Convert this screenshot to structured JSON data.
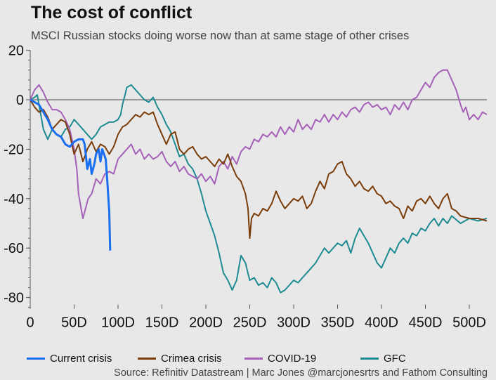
{
  "header": {
    "title": "The cost of conflict",
    "subtitle": "MSCI Russian stocks doing worse now than at same stage of other crises"
  },
  "source": "Source: Refinitiv Datastream | Marc Jones @marcjonesrtrs and Fathom Consulting",
  "chart_data": {
    "type": "line",
    "title": "The cost of conflict",
    "xlabel": "",
    "ylabel": "",
    "xlim": [
      0,
      520
    ],
    "ylim": [
      -84,
      20
    ],
    "x_ticks": [
      0,
      50,
      100,
      150,
      200,
      250,
      300,
      350,
      400,
      450,
      500
    ],
    "x_tick_labels": [
      "0",
      "50D",
      "100D",
      "150D",
      "200D",
      "250D",
      "300D",
      "350D",
      "400D",
      "450D",
      "500D"
    ],
    "y_ticks": [
      20,
      0,
      -20,
      -40,
      -60,
      -80
    ],
    "y_tick_labels": [
      "20",
      "0",
      "-20",
      "-40",
      "-60",
      "-80"
    ],
    "grid": false,
    "legend_position": "bottom",
    "series": [
      {
        "name": "Current crisis",
        "color": "#1a6ef0",
        "width": 3,
        "x": [
          0,
          5,
          10,
          15,
          20,
          25,
          30,
          35,
          40,
          45,
          50,
          55,
          60,
          62,
          65,
          68,
          70,
          73,
          75,
          78,
          80,
          82,
          84,
          86,
          88,
          89,
          90,
          91
        ],
        "y": [
          0,
          -1,
          -2,
          -5,
          -8,
          -12,
          -14,
          -15,
          -18,
          -19,
          -17,
          -16,
          -16,
          -18,
          -28,
          -24,
          -30,
          -26,
          -22,
          -20,
          -25,
          -20,
          -22,
          -24,
          -34,
          -40,
          -45,
          -61
        ]
      },
      {
        "name": "Crimea crisis",
        "color": "#7a3d0a",
        "width": 2,
        "x": [
          0,
          5,
          10,
          15,
          20,
          25,
          30,
          35,
          40,
          45,
          50,
          55,
          60,
          65,
          70,
          75,
          80,
          85,
          90,
          95,
          100,
          105,
          110,
          115,
          120,
          125,
          130,
          135,
          140,
          145,
          150,
          155,
          160,
          165,
          170,
          175,
          180,
          185,
          190,
          195,
          200,
          205,
          210,
          215,
          220,
          225,
          230,
          235,
          240,
          245,
          248,
          250,
          252,
          255,
          260,
          265,
          270,
          275,
          280,
          285,
          290,
          295,
          300,
          305,
          310,
          315,
          320,
          325,
          330,
          335,
          340,
          345,
          350,
          355,
          360,
          365,
          370,
          375,
          380,
          385,
          390,
          395,
          400,
          405,
          410,
          415,
          420,
          425,
          430,
          435,
          440,
          445,
          450,
          455,
          460,
          465,
          470,
          475,
          480,
          485,
          490,
          500,
          510,
          520
        ],
        "y": [
          0,
          -3,
          -5,
          -4,
          -7,
          -12,
          -10,
          -8,
          -9,
          -14,
          -22,
          -18,
          -25,
          -20,
          -17,
          -21,
          -18,
          -19,
          -22,
          -19,
          -14,
          -11,
          -10,
          -8,
          -6,
          -7,
          -5,
          -6,
          -5,
          -10,
          -14,
          -18,
          -14,
          -13,
          -20,
          -22,
          -20,
          -19,
          -22,
          -24,
          -23,
          -25,
          -27,
          -24,
          -26,
          -22,
          -27,
          -31,
          -33,
          -38,
          -44,
          -56,
          -48,
          -46,
          -47,
          -44,
          -45,
          -42,
          -37,
          -41,
          -44,
          -42,
          -40,
          -41,
          -39,
          -44,
          -42,
          -37,
          -33,
          -36,
          -30,
          -29,
          -26,
          -25,
          -30,
          -32,
          -35,
          -33,
          -36,
          -37,
          -35,
          -38,
          -39,
          -42,
          -41,
          -43,
          -44,
          -48,
          -43,
          -45,
          -41,
          -40,
          -42,
          -39,
          -42,
          -44,
          -40,
          -38,
          -44,
          -45,
          -47,
          -48,
          -48,
          -49
        ]
      },
      {
        "name": "COVID-19",
        "color": "#a560b8",
        "width": 2,
        "x": [
          0,
          5,
          10,
          15,
          20,
          25,
          30,
          35,
          40,
          45,
          50,
          53,
          55,
          58,
          60,
          63,
          66,
          70,
          75,
          80,
          85,
          90,
          95,
          100,
          105,
          110,
          115,
          120,
          125,
          130,
          135,
          140,
          145,
          150,
          155,
          160,
          165,
          170,
          175,
          180,
          185,
          190,
          195,
          200,
          205,
          210,
          215,
          220,
          225,
          230,
          235,
          240,
          245,
          250,
          255,
          260,
          265,
          270,
          275,
          280,
          285,
          290,
          295,
          300,
          305,
          310,
          315,
          320,
          325,
          330,
          335,
          340,
          345,
          350,
          355,
          360,
          365,
          370,
          375,
          380,
          385,
          390,
          395,
          400,
          405,
          410,
          415,
          420,
          425,
          430,
          435,
          440,
          445,
          450,
          455,
          460,
          465,
          470,
          475,
          480,
          485,
          490,
          493,
          496,
          500,
          505,
          510,
          515,
          520
        ],
        "y": [
          0,
          4,
          6,
          3,
          -1,
          -4,
          -4,
          -5,
          -8,
          -12,
          -20,
          -28,
          -38,
          -44,
          -48,
          -44,
          -40,
          -38,
          -32,
          -34,
          -30,
          -29,
          -30,
          -24,
          -22,
          -20,
          -18,
          -22,
          -20,
          -24,
          -22,
          -24,
          -23,
          -21,
          -25,
          -27,
          -25,
          -29,
          -27,
          -30,
          -31,
          -32,
          -30,
          -33,
          -31,
          -34,
          -27,
          -25,
          -28,
          -23,
          -26,
          -21,
          -19,
          -20,
          -16,
          -17,
          -14,
          -15,
          -13,
          -15,
          -11,
          -14,
          -11,
          -13,
          -8,
          -12,
          -10,
          -12,
          -8,
          -9,
          -6,
          -9,
          -6,
          -8,
          -5,
          -7,
          -4,
          -3,
          -5,
          -2,
          -1,
          -3,
          -2,
          -4,
          -3,
          -6,
          -2,
          -4,
          -1,
          -4,
          0,
          1,
          4,
          7,
          5,
          9,
          11,
          12,
          12,
          8,
          4,
          -2,
          -5,
          -3,
          -8,
          -6,
          -8,
          -5,
          -6
        ]
      },
      {
        "name": "GFC",
        "color": "#1e8a92",
        "width": 2,
        "x": [
          0,
          5,
          8,
          10,
          15,
          20,
          25,
          30,
          35,
          40,
          45,
          50,
          55,
          60,
          65,
          70,
          75,
          80,
          85,
          90,
          95,
          100,
          103,
          105,
          108,
          110,
          115,
          120,
          125,
          130,
          135,
          140,
          145,
          150,
          155,
          160,
          165,
          170,
          175,
          180,
          185,
          190,
          195,
          200,
          205,
          210,
          215,
          220,
          225,
          230,
          235,
          240,
          245,
          250,
          255,
          260,
          265,
          270,
          275,
          280,
          285,
          290,
          295,
          300,
          305,
          310,
          315,
          320,
          325,
          330,
          335,
          340,
          345,
          350,
          355,
          360,
          365,
          370,
          375,
          380,
          385,
          390,
          395,
          400,
          405,
          410,
          415,
          420,
          425,
          430,
          435,
          440,
          445,
          450,
          455,
          460,
          465,
          470,
          475,
          480,
          490,
          500,
          510,
          520
        ],
        "y": [
          0,
          1,
          2,
          -2,
          -12,
          -16,
          -12,
          -14,
          -15,
          -12,
          -11,
          -8,
          -10,
          -12,
          -14,
          -16,
          -14,
          -11,
          -10,
          -9,
          -9,
          -8,
          -6,
          -2,
          2,
          5,
          6,
          4,
          2,
          0,
          -1,
          1,
          -3,
          -6,
          -10,
          -13,
          -18,
          -23,
          -22,
          -26,
          -28,
          -32,
          -38,
          -45,
          -50,
          -55,
          -62,
          -70,
          -73,
          -77,
          -73,
          -63,
          -66,
          -73,
          -72,
          -75,
          -74,
          -76,
          -72,
          -74,
          -78,
          -77,
          -75,
          -73,
          -74,
          -72,
          -70,
          -68,
          -66,
          -63,
          -60,
          -62,
          -60,
          -58,
          -59,
          -57,
          -62,
          -56,
          -52,
          -55,
          -58,
          -62,
          -66,
          -68,
          -64,
          -60,
          -62,
          -58,
          -56,
          -58,
          -54,
          -55,
          -52,
          -53,
          -50,
          -48,
          -51,
          -48,
          -50,
          -47,
          -50,
          -48,
          -49,
          -48
        ]
      }
    ]
  }
}
